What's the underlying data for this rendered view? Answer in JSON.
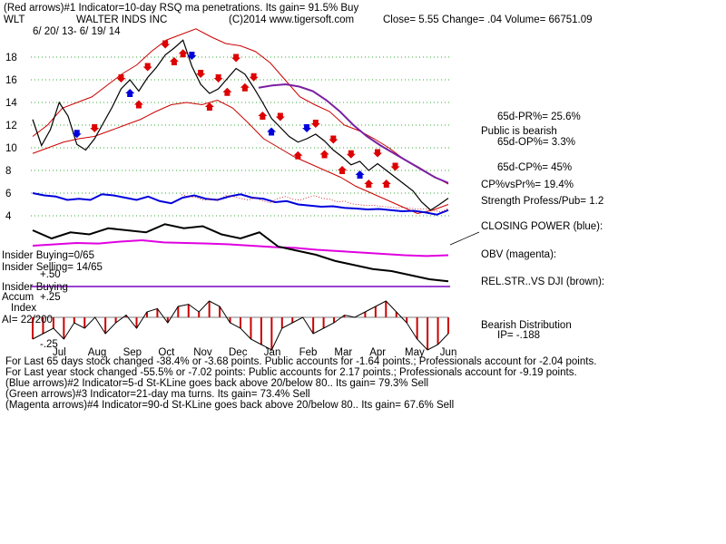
{
  "header": {
    "line1": "(Red arrows)#1 Indicator=10-day RSQ ma penetrations.  Its gain= 91.5% Buy",
    "ticker": "WLT",
    "company": "WALTER INDS INC",
    "copyright": "(C)2014 www.tigersoft.com",
    "close_label": "Close=  5.55  Change= .04 Volume= 66751.09",
    "date_range": "6/ 20/ 13- 6/ 19/ 14"
  },
  "right_labels": {
    "pr": "65d-PR%= 25.6%",
    "public": "Public is bearish",
    "op": "65d-OP%= 3.3%",
    "cp": "65d-CP%= 45%",
    "cpvspr": "CP%vsPr%=  19.4%",
    "strength": "Strength Profess/Pub= 1.2",
    "closing_power": "CLOSING POWER (blue):",
    "obv": "OBV (magenta):",
    "relstr": "REL.STR..VS DJI (brown):",
    "bearish": "Bearish Distribution",
    "ip": "IP= -.188"
  },
  "left_labels": {
    "insider_buying": "Insider Buying=0/65",
    "insider_selling": "Insider Selling= 14/65",
    "plus50": "+.50",
    "insider_buying2": "Insider Buying",
    "accum": "Accum",
    "plus25": "+.25",
    "index": "Index",
    "ai": "AI= 22/200",
    "minus25": "-.25"
  },
  "footer": {
    "line1": "For Last 65 days stock changed -38.4% or -3.68 points.  Public accounts for -1.64 points.;   Professionals account for -2.04 points.",
    "line2": "For Last year stock changed -55.5% or -7.02 points:  Public accounts for  2.17 points.;  Professionals account for -9.19 points.",
    "line3": "(Blue arrows)#2 Indicator=5-d St-KLine goes back above 20/below 80.. Its gain= 79.3% Sell",
    "line4": "(Green arrows)#3 Indicator=21-day ma turns.  Its gain= 73.4% Sell",
    "line5": "(Magenta arrows)#4 Indicator=90-d St-KLine goes back above 20/below 80.. Its gain= 67.6% Sell"
  },
  "colors": {
    "price": "#000000",
    "ma_band": "#cc0000",
    "ma_long": "#7a1fa2",
    "closing_power": "#0000dd",
    "obv": "#e000e0",
    "rel_str": "#000000",
    "grid": "#33aa33",
    "distribution": "#cc0000",
    "insider_line": "#7a00c0"
  },
  "chart_data": {
    "type": "line",
    "title": "WALTER INDS INC",
    "ticker": "WLT",
    "y_ticks": [
      4,
      6,
      8,
      10,
      12,
      14,
      16,
      18
    ],
    "ylim": [
      3,
      20
    ],
    "months": [
      "Jul",
      "Aug",
      "Sep",
      "Oct",
      "Nov",
      "Dec",
      "Jan",
      "Feb",
      "Mar",
      "Apr",
      "May",
      "Jun"
    ],
    "price": [
      12.5,
      10.2,
      11.6,
      14.0,
      12.8,
      10.3,
      9.8,
      10.8,
      12.2,
      13.6,
      15.2,
      16.0,
      15.0,
      16.2,
      17.1,
      18.2,
      18.8,
      19.5,
      17.2,
      15.6,
      14.8,
      15.2,
      16.1,
      17.0,
      16.5,
      15.3,
      14.0,
      12.6,
      11.8,
      11.0,
      10.5,
      10.8,
      11.2,
      10.6,
      9.8,
      9.2,
      8.5,
      8.8,
      8.0,
      8.6,
      8.0,
      7.4,
      6.8,
      6.2,
      5.2,
      4.5,
      5.0,
      5.55
    ],
    "upper_band": [
      11.0,
      12.0,
      13.5,
      14.0,
      14.5,
      15.5,
      16.5,
      17.3,
      18.5,
      19.5,
      20.0,
      20.5,
      19.8,
      19.2,
      19.0,
      18.5,
      17.5,
      16.0,
      14.5,
      13.8,
      13.2,
      12.0,
      11.5,
      10.8,
      10.0,
      9.0,
      8.3,
      7.5,
      6.8
    ],
    "lower_band": [
      9.5,
      10.0,
      10.5,
      10.8,
      11.0,
      11.5,
      12.0,
      12.5,
      13.2,
      13.8,
      14.0,
      13.8,
      14.2,
      13.5,
      12.2,
      10.8,
      10.0,
      9.2,
      8.6,
      8.0,
      7.4,
      6.6,
      6.0,
      5.4,
      4.8,
      4.2,
      4.5,
      5.0
    ],
    "long_ma": [
      15.3,
      15.5,
      15.6,
      15.4,
      15.0,
      14.2,
      13.2,
      12.0,
      11.0,
      10.2,
      9.5,
      8.8,
      8.1,
      7.4,
      6.9
    ],
    "closing_power": [
      0.6,
      0.5,
      0.45,
      0.3,
      0.35,
      0.3,
      0.55,
      0.5,
      0.4,
      0.3,
      0.45,
      0.25,
      0.15,
      0.4,
      0.5,
      0.35,
      0.3,
      0.45,
      0.55,
      0.4,
      0.35,
      0.2,
      0.25,
      0.1,
      0.05,
      0.0,
      0.02,
      -0.05,
      -0.08,
      -0.12,
      -0.1,
      -0.15,
      -0.2,
      -0.18,
      -0.25,
      -0.35,
      -0.15
    ],
    "obv": [
      0.3,
      0.35,
      0.4,
      0.38,
      0.45,
      0.5,
      0.42,
      0.4,
      0.38,
      0.35,
      0.3,
      0.25,
      0.22,
      0.15,
      0.1,
      0.05,
      0.0,
      -0.05,
      -0.08,
      -0.05
    ],
    "rel_str": [
      0.4,
      0.2,
      0.35,
      0.3,
      0.45,
      0.4,
      0.35,
      0.55,
      0.45,
      0.5,
      0.3,
      0.2,
      0.35,
      0.0,
      -0.1,
      -0.2,
      -0.35,
      -0.45,
      -0.55,
      -0.6,
      -0.7,
      -0.8,
      -0.85
    ],
    "accum_index": [
      -0.2,
      -0.15,
      -0.1,
      -0.2,
      -0.05,
      -0.1,
      0.0,
      -0.15,
      -0.05,
      0.02,
      -0.1,
      0.05,
      0.08,
      -0.05,
      0.1,
      0.12,
      0.05,
      0.15,
      0.1,
      -0.05,
      -0.1,
      -0.2,
      -0.25,
      -0.3,
      -0.1,
      -0.05,
      0.0,
      -0.15,
      -0.1,
      -0.05,
      0.02,
      0.0,
      0.05,
      0.1,
      0.15,
      0.05,
      -0.05,
      -0.2,
      -0.3,
      -0.25,
      -0.15
    ],
    "red_arrows_up": [
      12,
      16,
      17,
      20,
      22,
      24,
      26,
      30,
      33,
      35,
      38,
      40
    ],
    "red_arrows_down": [
      7,
      10,
      13,
      15,
      19,
      21,
      23,
      25,
      28,
      32,
      34,
      36,
      39,
      41
    ],
    "blue_arrows_down": [
      5,
      18,
      31
    ],
    "blue_arrows_up": [
      11,
      27,
      37
    ]
  }
}
